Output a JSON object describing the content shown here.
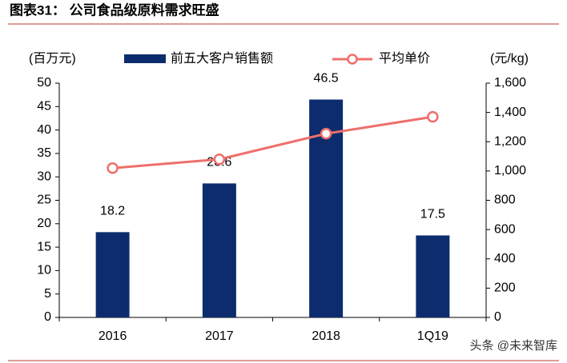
{
  "chart_data": {
    "type": "combo",
    "title": "图表31：  公司食品级原料需求旺盛",
    "ylabel": "(百万元)",
    "y2label": "(元/kg)",
    "watermark": "头条 @未来智库",
    "categories": [
      "2016",
      "2017",
      "2018",
      "1Q19"
    ],
    "series": [
      {
        "name": "前五大客户销售额",
        "type": "bar",
        "color": "#0c2c6e",
        "values": [
          18.2,
          28.6,
          46.5,
          17.5
        ]
      },
      {
        "name": "平均单价",
        "type": "line",
        "axis": "y2",
        "color": "#ee6f6b",
        "values": [
          1020,
          1080,
          1255,
          1370
        ]
      }
    ],
    "ylim": [
      0,
      50
    ],
    "yticks": [
      0,
      5,
      10,
      15,
      20,
      25,
      30,
      35,
      40,
      45,
      50
    ],
    "y2lim": [
      0,
      1600
    ],
    "y2ticks": [
      0,
      200,
      400,
      600,
      800,
      {
        "value": 1000,
        "label": "1,000"
      },
      {
        "value": 1200,
        "label": "1,200"
      },
      {
        "value": 1400,
        "label": "1,400"
      },
      {
        "value": 1600,
        "label": "1,600"
      }
    ],
    "grid": false
  }
}
